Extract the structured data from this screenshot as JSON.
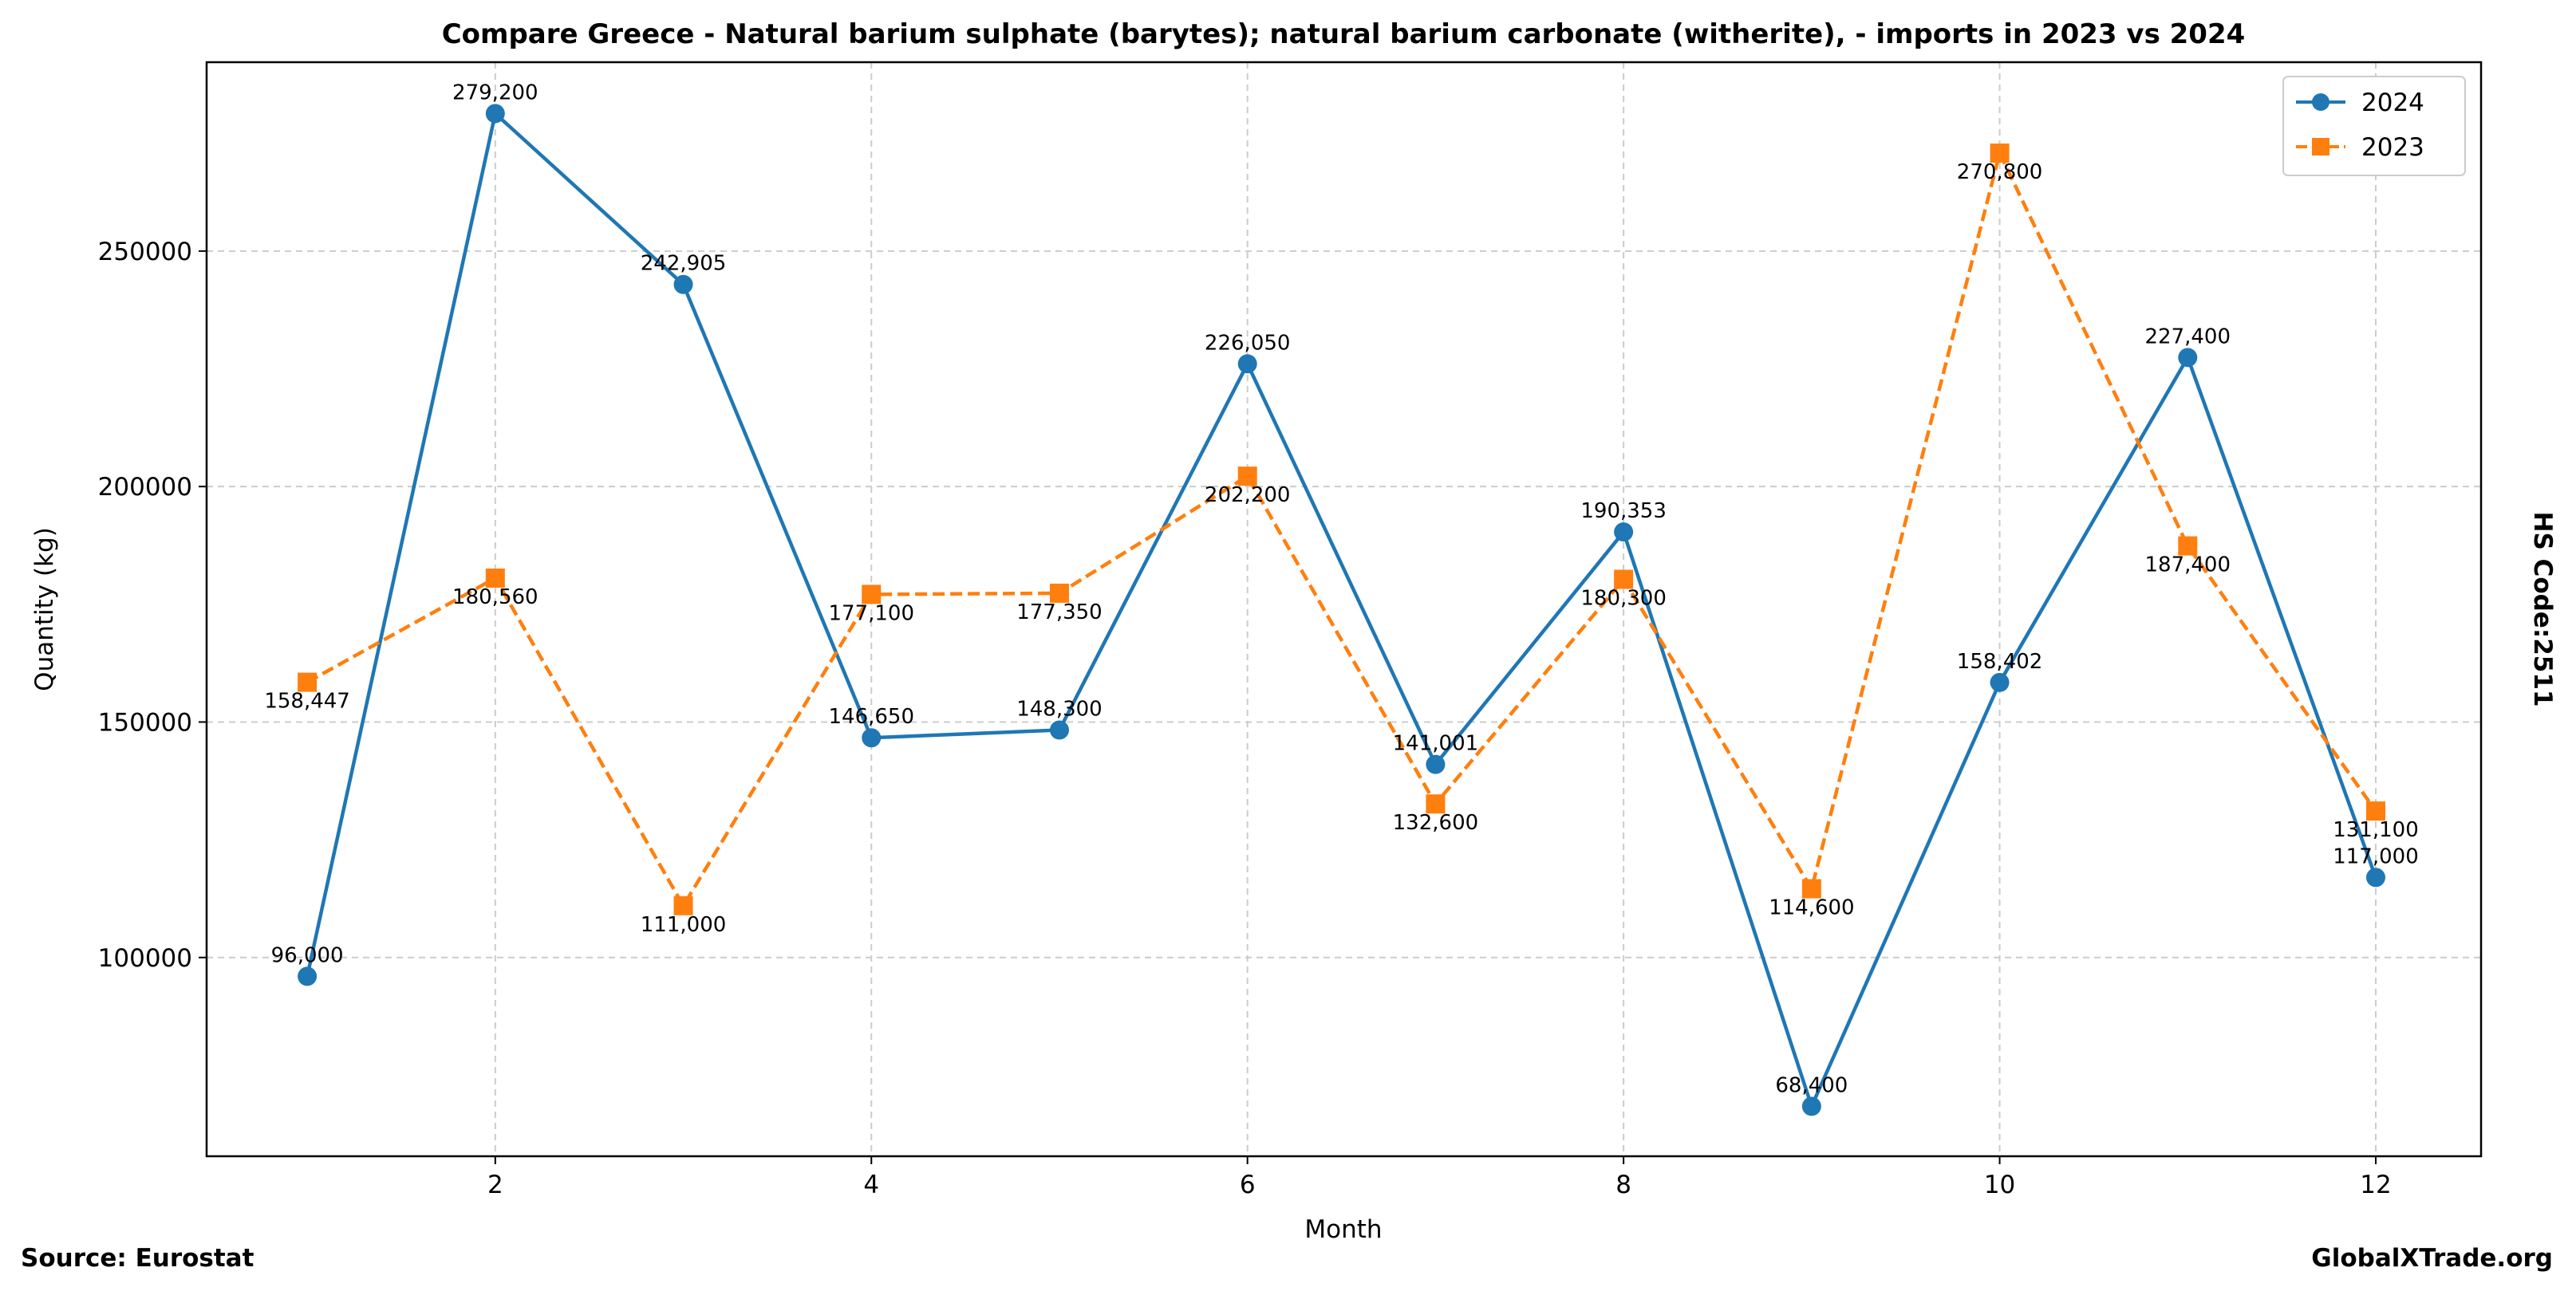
{
  "chart_data": {
    "type": "line",
    "title": "Compare Greece - Natural barium sulphate (barytes); natural barium carbonate (witherite), - imports in 2023 vs 2024",
    "xlabel": "Month",
    "ylabel": "Quantity (kg)",
    "x": [
      1,
      2,
      3,
      4,
      5,
      6,
      7,
      8,
      9,
      10,
      11,
      12
    ],
    "xlim": [
      0.465,
      12.56
    ],
    "ylim": [
      57800,
      290100
    ],
    "xticks": [
      2,
      4,
      6,
      8,
      10,
      12
    ],
    "yticks": [
      100000,
      150000,
      200000,
      250000
    ],
    "grid": true,
    "legend_position": "top-right",
    "series": [
      {
        "name": "2024",
        "color": "#1f77b4",
        "marker": "circle",
        "linestyle": "solid",
        "values": [
          96000,
          279200,
          242905,
          146650,
          148300,
          226050,
          141001,
          190353,
          68400,
          158402,
          227400,
          117000
        ],
        "labels": [
          "96,000",
          "279,200",
          "242,905",
          "146,650",
          "148,300",
          "226,050",
          "141,001",
          "190,353",
          "68,400",
          "158,402",
          "227,400",
          "117,000"
        ]
      },
      {
        "name": "2023",
        "color": "#ff7f0e",
        "marker": "square",
        "linestyle": "dashed",
        "values": [
          158447,
          180560,
          111000,
          177100,
          177350,
          202200,
          132600,
          180300,
          114600,
          270800,
          187400,
          131100
        ],
        "labels": [
          "158,447",
          "180,560",
          "111,000",
          "177,100",
          "177,350",
          "202,200",
          "132,600",
          "180,300",
          "114,600",
          "270,800",
          "187,400",
          "131,100"
        ]
      }
    ]
  },
  "side_label": "HS Code:2511",
  "source": "Source: Eurostat",
  "brand": "GlobalXTrade.org"
}
